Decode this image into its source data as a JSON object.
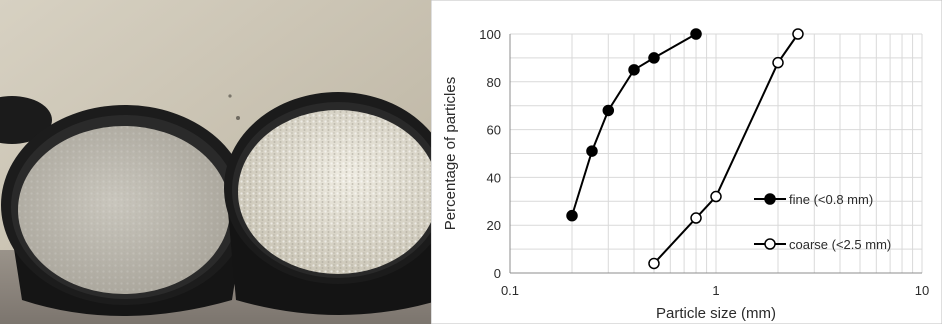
{
  "photo": {
    "description_icon": "sand-buckets-photo"
  },
  "chart_data": {
    "type": "scatter",
    "xlabel": "Particle size (mm)",
    "ylabel": "Percentage of particles",
    "xscale": "log",
    "xlim": [
      0.1,
      10
    ],
    "ylim": [
      0,
      100
    ],
    "xticks": [
      "0.1",
      "1",
      "10"
    ],
    "yticks": [
      "0",
      "20",
      "40",
      "60",
      "80",
      "100"
    ],
    "grid": true,
    "legend_position": "bottom-right",
    "series": [
      {
        "name": "fine (<0.8 mm)",
        "marker": "filled-circle",
        "x": [
          0.2,
          0.25,
          0.3,
          0.4,
          0.5,
          0.8
        ],
        "y": [
          24,
          51,
          68,
          85,
          90,
          100
        ]
      },
      {
        "name": "coarse (<2.5 mm)",
        "marker": "open-circle",
        "x": [
          0.5,
          0.8,
          1.0,
          2.0,
          2.5
        ],
        "y": [
          4,
          23,
          32,
          88,
          100
        ]
      }
    ]
  },
  "colors": {
    "line": "#000000",
    "grid": "#d9d9d9",
    "text": "#2b2b2b"
  }
}
